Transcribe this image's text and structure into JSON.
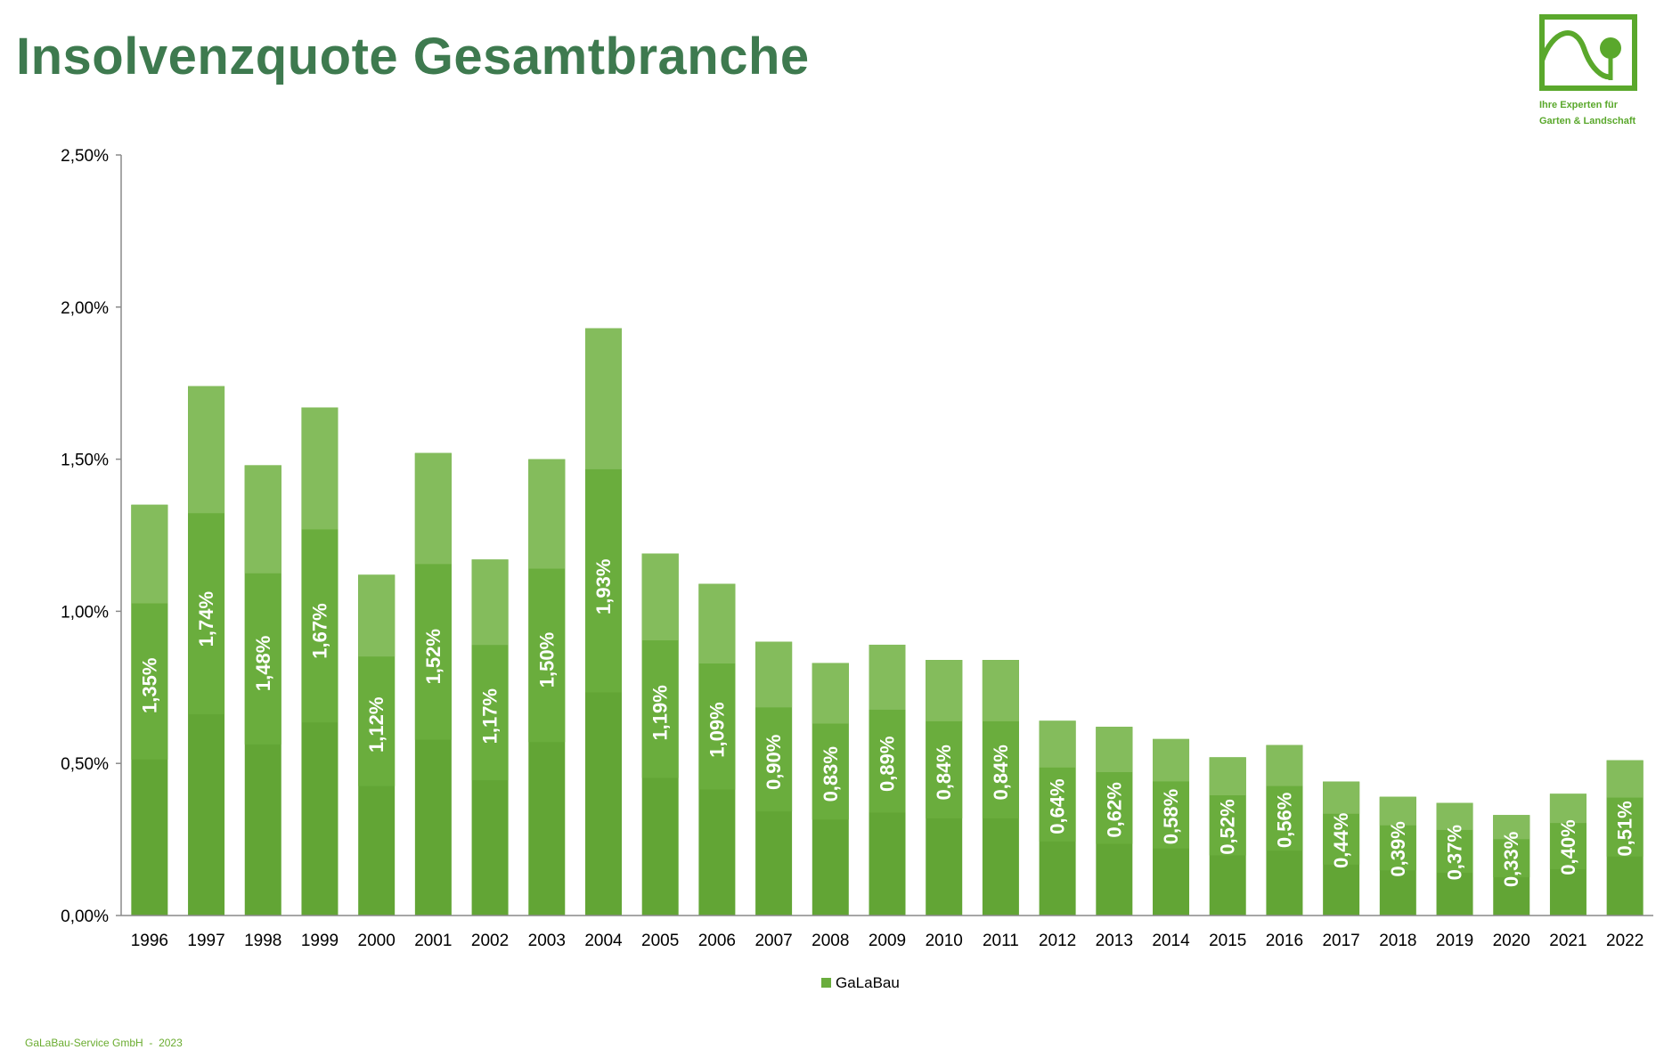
{
  "title": "Insolvenzquote Gesamtbranche",
  "logo": {
    "tagline_line1": "Ihre Experten für",
    "tagline_line2": "Garten & Landschaft"
  },
  "footer": {
    "company": "GaLaBau-Service GmbH",
    "separator": "-",
    "year": "2023"
  },
  "colors": {
    "title": "#3e7a4f",
    "bar": "#6aad3d",
    "bar_light": "#84bc5c",
    "bar_dark": "#62a535",
    "logo": "#5aa82c",
    "label": "#ffffff"
  },
  "chart_data": {
    "type": "bar",
    "categories": [
      "1996",
      "1997",
      "1998",
      "1999",
      "2000",
      "2001",
      "2002",
      "2003",
      "2004",
      "2005",
      "2006",
      "2007",
      "2008",
      "2009",
      "2010",
      "2011",
      "2012",
      "2013",
      "2014",
      "2015",
      "2016",
      "2017",
      "2018",
      "2019",
      "2020",
      "2021",
      "2022"
    ],
    "series": [
      {
        "name": "GaLaBau",
        "values": [
          1.35,
          1.74,
          1.48,
          1.67,
          1.12,
          1.52,
          1.17,
          1.5,
          1.93,
          1.19,
          1.09,
          0.9,
          0.83,
          0.89,
          0.84,
          0.84,
          0.64,
          0.62,
          0.58,
          0.52,
          0.56,
          0.44,
          0.39,
          0.37,
          0.33,
          0.4,
          0.51
        ],
        "labels": [
          "1,35%",
          "1,74%",
          "1,48%",
          "1,67%",
          "1,12%",
          "1,52%",
          "1,17%",
          "1,50%",
          "1,93%",
          "1,19%",
          "1,09%",
          "0,90%",
          "0,83%",
          "0,89%",
          "0,84%",
          "0,84%",
          "0,64%",
          "0,62%",
          "0,58%",
          "0,52%",
          "0,56%",
          "0,44%",
          "0,39%",
          "0,37%",
          "0,33%",
          "0,40%",
          "0,51%"
        ]
      }
    ],
    "y_ticks": [
      0,
      0.5,
      1.0,
      1.5,
      2.0,
      2.5
    ],
    "y_tick_labels": [
      "0,00%",
      "0,50%",
      "1,00%",
      "1,50%",
      "2,00%",
      "2,50%"
    ],
    "ylim": [
      0,
      2.5
    ],
    "grid": false,
    "legend": "bottom-center",
    "xlabel": "",
    "ylabel": ""
  }
}
